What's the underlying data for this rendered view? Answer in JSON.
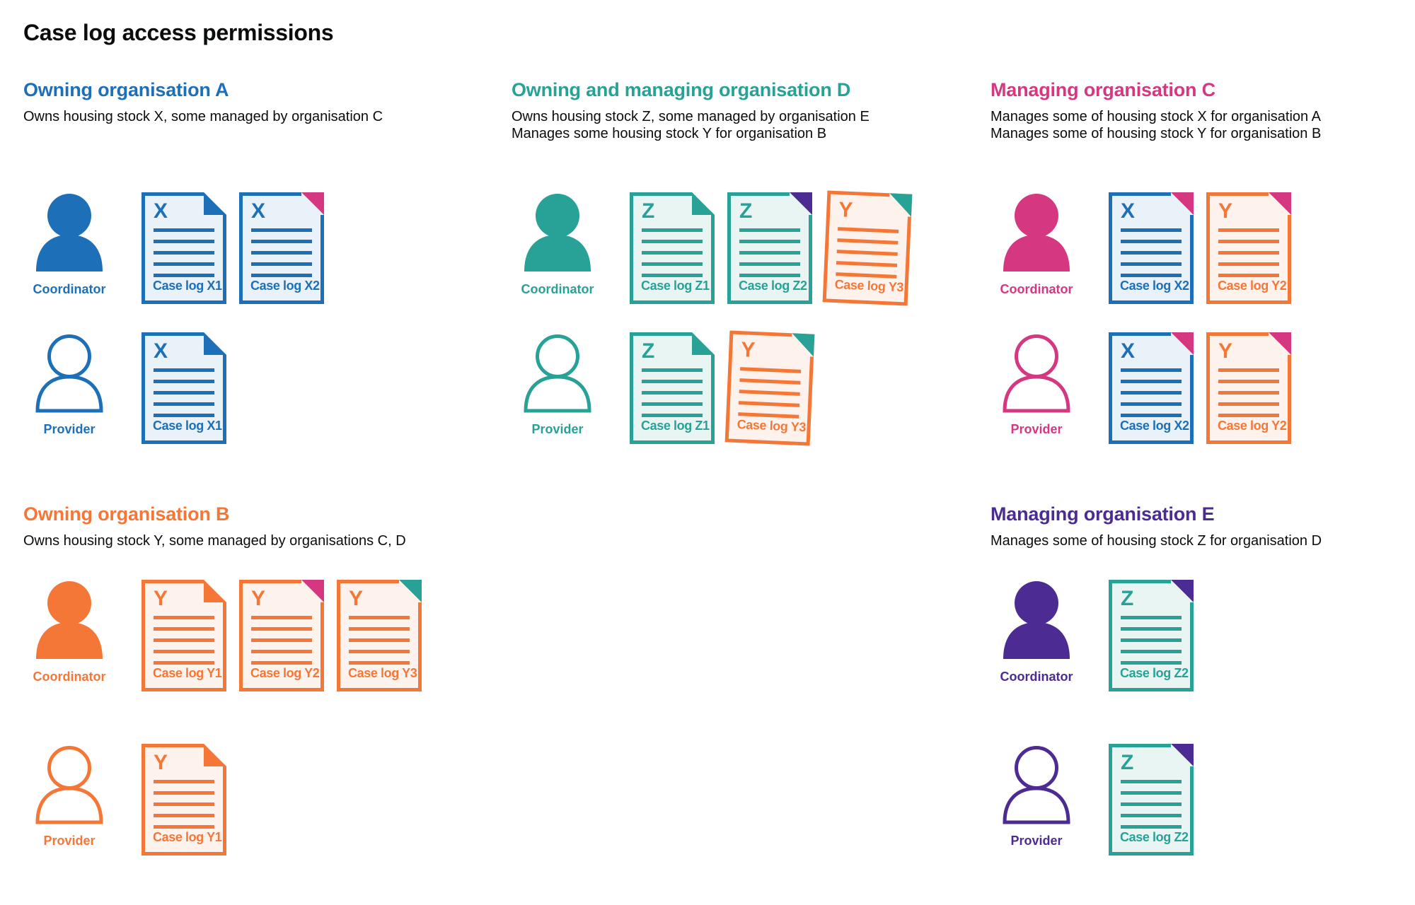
{
  "title": "Case log access permissions",
  "colors": {
    "blue": "#1d70b8",
    "teal": "#28a197",
    "pink": "#d53880",
    "orange": "#f47738",
    "purple": "#4c2c92",
    "text": "#0b0c0c",
    "tint_blue": "#e9f1f9",
    "tint_teal": "#e9f5f3",
    "tint_orange": "#fef3ec"
  },
  "sections": [
    {
      "id": "owning-organisation-a",
      "heading": "Owning organisation A",
      "color": "blue",
      "description": [
        "Owns housing stock X, some managed by organisation C"
      ],
      "rows": [
        {
          "role": "Coordinator",
          "docs": [
            {
              "letter": "X",
              "caption": "Case log X1",
              "color": "blue",
              "fold": "blue"
            },
            {
              "letter": "X",
              "caption": "Case log X2",
              "color": "blue",
              "fold": "pink"
            }
          ]
        },
        {
          "role": "Provider",
          "docs": [
            {
              "letter": "X",
              "caption": "Case log X1",
              "color": "blue",
              "fold": "blue"
            }
          ]
        }
      ]
    },
    {
      "id": "owning-and-managing-organisation-d",
      "heading": "Owning and managing organisation D",
      "color": "teal",
      "description": [
        "Owns housing stock Z, some managed by organisation E",
        "Manages some housing stock Y for organisation B"
      ],
      "rows": [
        {
          "role": "Coordinator",
          "docs": [
            {
              "letter": "Z",
              "caption": "Case log Z1",
              "color": "teal",
              "fold": "teal"
            },
            {
              "letter": "Z",
              "caption": "Case log Z2",
              "color": "teal",
              "fold": "purple"
            },
            {
              "letter": "Y",
              "caption": "Case log Y3",
              "color": "orange",
              "fold": "teal",
              "tilt": true
            }
          ]
        },
        {
          "role": "Provider",
          "docs": [
            {
              "letter": "Z",
              "caption": "Case log Z1",
              "color": "teal",
              "fold": "teal"
            },
            {
              "letter": "Y",
              "caption": "Case log Y3",
              "color": "orange",
              "fold": "teal",
              "tilt": true
            }
          ]
        }
      ]
    },
    {
      "id": "managing-organisation-c",
      "heading": "Managing organisation C",
      "color": "pink",
      "description": [
        "Manages some of housing stock X for organisation A",
        "Manages some of housing stock Y for organisation B"
      ],
      "rows": [
        {
          "role": "Coordinator",
          "docs": [
            {
              "letter": "X",
              "caption": "Case log X2",
              "color": "blue",
              "fold": "pink"
            },
            {
              "letter": "Y",
              "caption": "Case log Y2",
              "color": "orange",
              "fold": "pink"
            }
          ]
        },
        {
          "role": "Provider",
          "docs": [
            {
              "letter": "X",
              "caption": "Case log X2",
              "color": "blue",
              "fold": "pink"
            },
            {
              "letter": "Y",
              "caption": "Case log Y2",
              "color": "orange",
              "fold": "pink"
            }
          ]
        }
      ]
    },
    {
      "id": "owning-organisation-b",
      "heading": "Owning organisation B",
      "color": "orange",
      "description": [
        "Owns housing stock Y, some managed by organisations C, D"
      ],
      "rows": [
        {
          "role": "Coordinator",
          "docs": [
            {
              "letter": "Y",
              "caption": "Case log Y1",
              "color": "orange",
              "fold": "orange"
            },
            {
              "letter": "Y",
              "caption": "Case log Y2",
              "color": "orange",
              "fold": "pink"
            },
            {
              "letter": "Y",
              "caption": "Case log Y3",
              "color": "orange",
              "fold": "teal"
            }
          ]
        },
        {
          "role": "Provider",
          "docs": [
            {
              "letter": "Y",
              "caption": "Case log Y1",
              "color": "orange",
              "fold": "orange"
            }
          ]
        }
      ]
    },
    {
      "id": "managing-organisation-e",
      "heading": "Managing organisation E",
      "color": "purple",
      "description": [
        "Manages some of housing stock Z for organisation D"
      ],
      "rows": [
        {
          "role": "Coordinator",
          "docs": [
            {
              "letter": "Z",
              "caption": "Case log Z2",
              "color": "teal",
              "fold": "purple"
            }
          ]
        },
        {
          "role": "Provider",
          "docs": [
            {
              "letter": "Z",
              "caption": "Case log Z2",
              "color": "teal",
              "fold": "purple"
            }
          ]
        }
      ]
    }
  ]
}
